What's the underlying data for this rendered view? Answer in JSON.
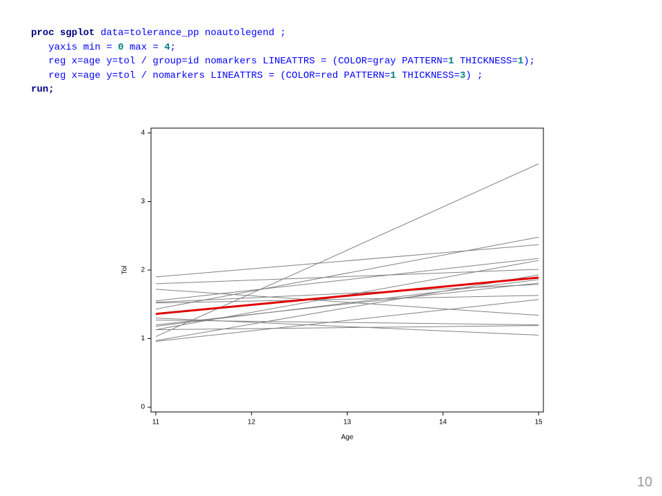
{
  "code_lines": [
    [
      {
        "text": "proc sgplot",
        "color": "#000080",
        "bold": true
      },
      {
        "text": " data=tolerance_pp noautolegend ;",
        "color": "#0000ff",
        "bold": false
      }
    ],
    [
      {
        "text": "   yaxis min = ",
        "color": "#0000ff",
        "bold": false
      },
      {
        "text": "0",
        "color": "#008080",
        "bold": true
      },
      {
        "text": " max = ",
        "color": "#0000ff",
        "bold": false
      },
      {
        "text": "4",
        "color": "#008080",
        "bold": true
      },
      {
        "text": ";",
        "color": "#0000ff",
        "bold": false
      }
    ],
    [
      {
        "text": "   reg x=age y=tol / group=id nomarkers LINEATTRS = (COLOR=gray PATTERN=",
        "color": "#0000ff",
        "bold": false
      },
      {
        "text": "1",
        "color": "#008080",
        "bold": true
      },
      {
        "text": " THICKNESS=",
        "color": "#0000ff",
        "bold": false
      },
      {
        "text": "1",
        "color": "#008080",
        "bold": true
      },
      {
        "text": ");",
        "color": "#0000ff",
        "bold": false
      }
    ],
    [
      {
        "text": "   reg x=age y=tol / nomarkers LINEATTRS = (COLOR=red PATTERN=",
        "color": "#0000ff",
        "bold": false
      },
      {
        "text": "1",
        "color": "#008080",
        "bold": true
      },
      {
        "text": " THICKNESS=",
        "color": "#0000ff",
        "bold": false
      },
      {
        "text": "3",
        "color": "#008080",
        "bold": true
      },
      {
        "text": ") ;",
        "color": "#0000ff",
        "bold": false
      }
    ],
    [
      {
        "text": "run;",
        "color": "#000080",
        "bold": true
      }
    ]
  ],
  "page_number": "10",
  "chart_data": {
    "type": "line",
    "xlabel": "Age",
    "ylabel": "Tol",
    "xlim": [
      10.95,
      15.05
    ],
    "xticks": [
      11,
      12,
      13,
      14,
      15
    ],
    "ylim": [
      -0.07,
      4.07
    ],
    "yticks": [
      0,
      1,
      2,
      3,
      4
    ],
    "x": [
      11,
      15
    ],
    "series": [
      {
        "color": "#808080",
        "width": 1,
        "values": [
          1.03,
          3.55
        ]
      },
      {
        "color": "#808080",
        "width": 1,
        "values": [
          1.43,
          2.48
        ]
      },
      {
        "color": "#808080",
        "width": 1,
        "values": [
          1.9,
          2.37
        ]
      },
      {
        "color": "#808080",
        "width": 1,
        "values": [
          1.55,
          2.17
        ]
      },
      {
        "color": "#808080",
        "width": 1,
        "values": [
          1.13,
          2.14
        ]
      },
      {
        "color": "#808080",
        "width": 1,
        "values": [
          1.8,
          2.01
        ]
      },
      {
        "color": "#808080",
        "width": 1,
        "values": [
          0.97,
          1.93
        ]
      },
      {
        "color": "#808080",
        "width": 1,
        "values": [
          1.18,
          1.86
        ]
      },
      {
        "color": "#808080",
        "width": 1,
        "values": [
          1.2,
          1.81
        ]
      },
      {
        "color": "#808080",
        "width": 1,
        "values": [
          1.53,
          1.79
        ]
      },
      {
        "color": "#808080",
        "width": 1,
        "values": [
          1.52,
          1.63
        ]
      },
      {
        "color": "#808080",
        "width": 1,
        "values": [
          0.96,
          1.57
        ]
      },
      {
        "color": "#808080",
        "width": 1,
        "values": [
          1.72,
          1.34
        ]
      },
      {
        "color": "#808080",
        "width": 1,
        "values": [
          1.27,
          1.2
        ]
      },
      {
        "color": "#808080",
        "width": 1,
        "values": [
          1.13,
          1.19
        ]
      },
      {
        "color": "#808080",
        "width": 1,
        "values": [
          1.3,
          1.05
        ]
      },
      {
        "color": "#e00000",
        "width": 3,
        "values": [
          1.36,
          1.89
        ]
      }
    ]
  }
}
